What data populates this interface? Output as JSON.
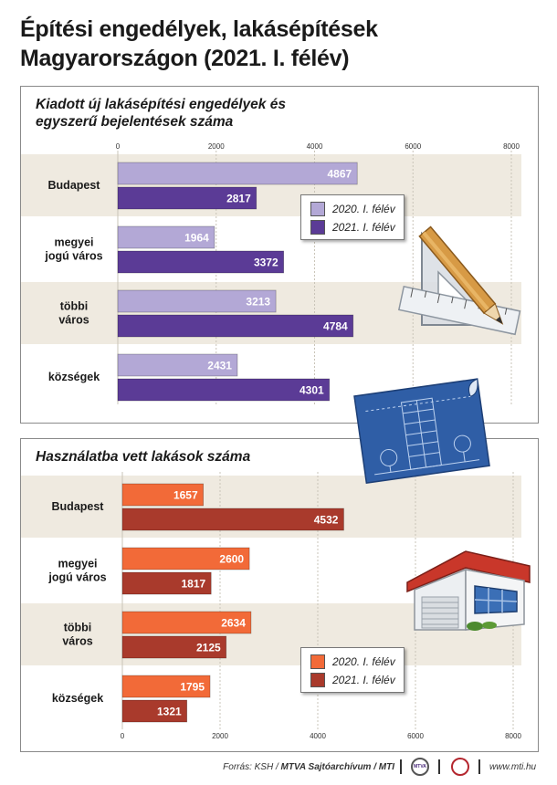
{
  "title": "Építési engedélyek, lakásépítések Magyarországon (2021. I. félév)",
  "chart_data": [
    {
      "type": "bar",
      "orientation": "horizontal",
      "title": "Kiadott új lakásépítési engedélyek és egyszerű bejelentések száma",
      "categories": [
        "Budapest",
        "megyei jogú város",
        "többi város",
        "községek"
      ],
      "category_lines": [
        [
          "Budapest"
        ],
        [
          "megyei",
          "jogú város"
        ],
        [
          "többi",
          "város"
        ],
        [
          "községek"
        ]
      ],
      "series": [
        {
          "name": "2020. I. félév",
          "values": [
            4867,
            1964,
            3213,
            2431
          ],
          "color": "#b3a8d6"
        },
        {
          "name": "2021. I. félév",
          "values": [
            2817,
            3372,
            4784,
            4301
          ],
          "color": "#5b3b96"
        }
      ],
      "xlim": [
        0,
        8000
      ],
      "ticks": [
        0,
        2000,
        4000,
        6000,
        8000
      ],
      "tick_position": "top",
      "legend_position": "right"
    },
    {
      "type": "bar",
      "orientation": "horizontal",
      "title": "Használatba vett lakások száma",
      "categories": [
        "Budapest",
        "megyei jogú város",
        "többi város",
        "községek"
      ],
      "category_lines": [
        [
          "Budapest"
        ],
        [
          "megyei",
          "jogú város"
        ],
        [
          "többi",
          "város"
        ],
        [
          "községek"
        ]
      ],
      "series": [
        {
          "name": "2020. I. félév",
          "values": [
            1657,
            2600,
            2634,
            1795
          ],
          "color": "#f26a38"
        },
        {
          "name": "2021. I. félév",
          "values": [
            4532,
            1817,
            2125,
            1321
          ],
          "color": "#a93a2c"
        }
      ],
      "xlim": [
        0,
        8000
      ],
      "ticks": [
        0,
        2000,
        4000,
        6000,
        8000
      ],
      "tick_position": "bottom",
      "legend_position": "bottom-right"
    }
  ],
  "footer": {
    "source_prefix": "Forrás: KSH /",
    "source_bold": "MTVA Sajtóarchívum / MTI",
    "logo1_text": "MTVA",
    "website": "www.mti.hu"
  },
  "colors": {
    "band": "#efeae0",
    "gridline": "#c9c4b8",
    "label_text": "#1a1a1a"
  },
  "icons": [
    "pencil-ruler-icon",
    "blueprint-icon",
    "house-icon",
    "mtva-logo-icon",
    "mti-logo-icon"
  ]
}
